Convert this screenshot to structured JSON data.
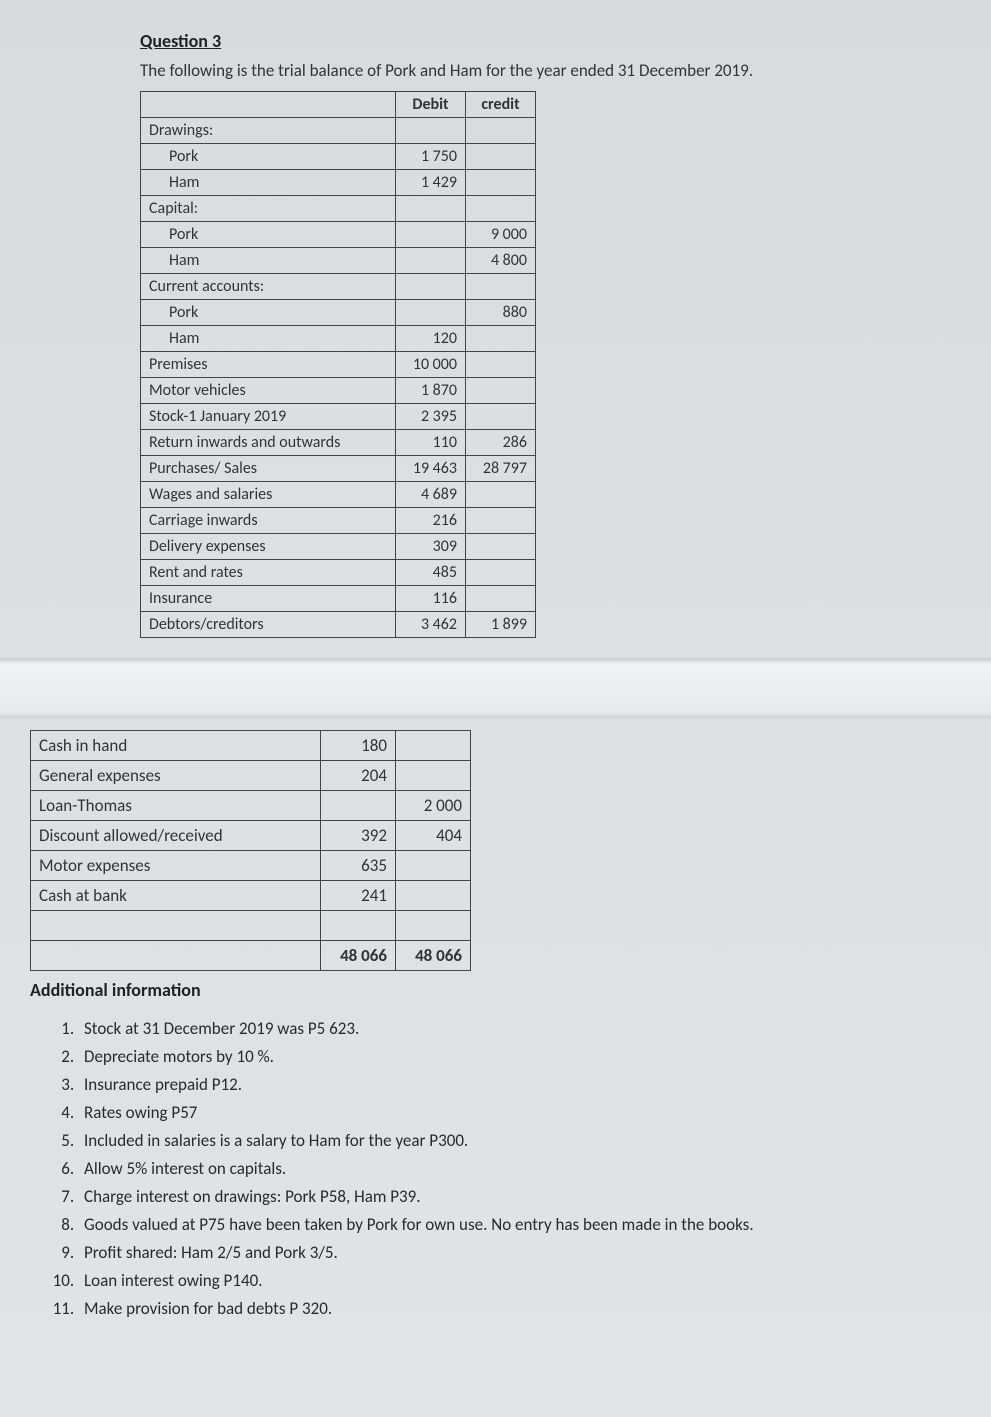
{
  "question_label": "Question 3",
  "intro_text": "The following is the trial balance of Pork and Ham for the year ended 31 December 2019.",
  "table1": {
    "headers": {
      "debit": "Debit",
      "credit": "credit"
    },
    "rows": [
      {
        "label": "Drawings:",
        "debit": "",
        "credit": "",
        "section": true
      },
      {
        "label": "Pork",
        "debit": "1 750",
        "credit": "",
        "indent": true
      },
      {
        "label": "Ham",
        "debit": "1 429",
        "credit": "",
        "indent": true
      },
      {
        "label": "Capital:",
        "debit": "",
        "credit": "",
        "section": true
      },
      {
        "label": "Pork",
        "debit": "",
        "credit": "9 000",
        "indent": true
      },
      {
        "label": "Ham",
        "debit": "",
        "credit": "4 800",
        "indent": true
      },
      {
        "label": "Current accounts:",
        "debit": "",
        "credit": "",
        "section": true
      },
      {
        "label": "Pork",
        "debit": "",
        "credit": "880",
        "indent": true
      },
      {
        "label": "Ham",
        "debit": "120",
        "credit": "",
        "indent": true
      },
      {
        "label": "Premises",
        "debit": "10 000",
        "credit": ""
      },
      {
        "label": "Motor vehicles",
        "debit": "1 870",
        "credit": ""
      },
      {
        "label": "Stock-1 January 2019",
        "debit": "2 395",
        "credit": ""
      },
      {
        "label": "Return inwards and outwards",
        "debit": "110",
        "credit": "286"
      },
      {
        "label": "Purchases/ Sales",
        "debit": "19 463",
        "credit": "28 797"
      },
      {
        "label": "Wages and salaries",
        "debit": "4 689",
        "credit": ""
      },
      {
        "label": "Carriage inwards",
        "debit": "216",
        "credit": ""
      },
      {
        "label": "Delivery expenses",
        "debit": "309",
        "credit": ""
      },
      {
        "label": "Rent and rates",
        "debit": "485",
        "credit": ""
      },
      {
        "label": "Insurance",
        "debit": "116",
        "credit": ""
      },
      {
        "label": "Debtors/creditors",
        "debit": "3 462",
        "credit": "1 899"
      }
    ]
  },
  "table2": {
    "rows": [
      {
        "label": "Cash in hand",
        "debit": "180",
        "credit": ""
      },
      {
        "label": "General expenses",
        "debit": "204",
        "credit": ""
      },
      {
        "label": "Loan-Thomas",
        "debit": "",
        "credit": "2 000"
      },
      {
        "label": "Discount allowed/received",
        "debit": "392",
        "credit": "404"
      },
      {
        "label": "Motor expenses",
        "debit": "635",
        "credit": ""
      },
      {
        "label": "Cash at bank",
        "debit": "241",
        "credit": ""
      }
    ],
    "blank": {
      "label": "",
      "debit": "",
      "credit": ""
    },
    "total": {
      "label": "",
      "debit": "48 066",
      "credit": "48 066"
    }
  },
  "additional_label": "Additional information",
  "info_items": [
    "Stock at 31 December 2019 was P5 623.",
    "Depreciate motors by 10 %.",
    "Insurance prepaid P12.",
    "Rates owing P57",
    "Included in salaries is a salary to Ham for the year P300.",
    "Allow 5% interest on capitals.",
    "Charge interest on drawings: Pork P58, Ham P39.",
    "Goods valued at P75 have been taken by Pork for own use. No entry has been made  in the books.",
    "Profit shared: Ham 2/5 and Pork 3/5.",
    "Loan interest owing P140.",
    "Make provision for bad debts P 320."
  ]
}
